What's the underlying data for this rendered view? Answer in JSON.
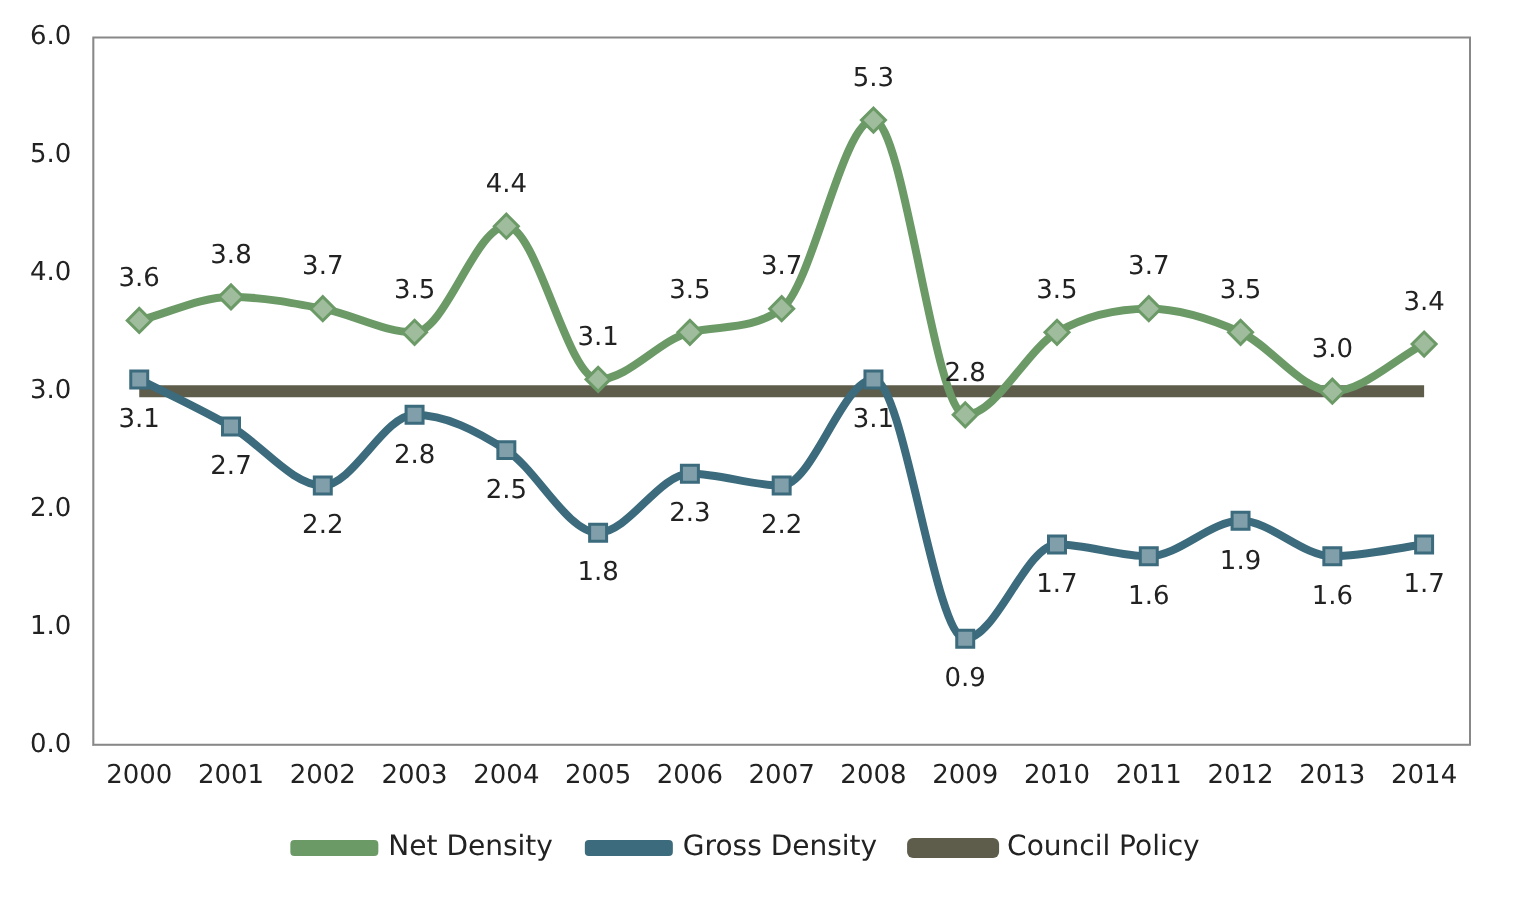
{
  "chart_data": {
    "type": "line",
    "categories": [
      "2000",
      "2001",
      "2002",
      "2003",
      "2004",
      "2005",
      "2006",
      "2007",
      "2008",
      "2009",
      "2010",
      "2011",
      "2012",
      "2013",
      "2014"
    ],
    "series": [
      {
        "name": "Net Density",
        "color": "#6b9a67",
        "marker": "diamond",
        "values": [
          3.6,
          3.8,
          3.7,
          3.5,
          4.4,
          3.1,
          3.5,
          3.7,
          5.3,
          2.8,
          3.5,
          3.7,
          3.5,
          3.0,
          3.4
        ],
        "value_labels": [
          "3.6",
          "3.8",
          "3.7",
          "3.5",
          "4.4",
          "3.1",
          "3.5",
          "3.7",
          "5.3",
          "2.8",
          "3.5",
          "3.7",
          "3.5",
          "3.0",
          "3.4"
        ]
      },
      {
        "name": "Gross Density",
        "color": "#3b6b7c",
        "marker": "square",
        "values": [
          3.1,
          2.7,
          2.2,
          2.8,
          2.5,
          1.8,
          2.3,
          2.2,
          3.1,
          0.9,
          1.7,
          1.6,
          1.9,
          1.6,
          1.7
        ],
        "value_labels": [
          "3.1",
          "2.7",
          "2.2",
          "2.8",
          "2.5",
          "1.8",
          "2.3",
          "2.2",
          "3.1",
          "0.9",
          "1.7",
          "1.6",
          "1.9",
          "1.6",
          "1.7"
        ]
      },
      {
        "name": "Council Policy",
        "color": "#5e5d4b",
        "marker": "none",
        "values": [
          3.0,
          3.0,
          3.0,
          3.0,
          3.0,
          3.0,
          3.0,
          3.0,
          3.0,
          3.0,
          3.0,
          3.0,
          3.0,
          3.0,
          3.0
        ]
      }
    ],
    "ylim": [
      0,
      6
    ],
    "yticks": [
      {
        "value": 0,
        "label": "0.0"
      },
      {
        "value": 1,
        "label": "1.0"
      },
      {
        "value": 2,
        "label": "2.0"
      },
      {
        "value": 3,
        "label": "3.0"
      },
      {
        "value": 4,
        "label": "4.0"
      },
      {
        "value": 5,
        "label": "5.0"
      },
      {
        "value": 6,
        "label": "6.0"
      }
    ],
    "grid": false,
    "legend": "bottom"
  }
}
